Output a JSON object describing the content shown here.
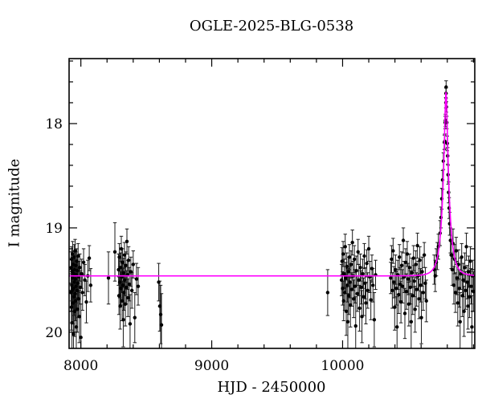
{
  "chart_data": {
    "type": "scatter",
    "title": "OGLE-2025-BLG-0538",
    "xlabel": "HJD - 2450000",
    "ylabel": "I magnitude",
    "xlim": [
      7910,
      11010
    ],
    "ylim_mag": [
      20.155,
      17.377
    ],
    "y_axis_inverted": true,
    "grid": false,
    "legend": "none",
    "x_major_ticks": [
      8000,
      9000,
      10000
    ],
    "x_minor_step": 200,
    "y_major_ticks": [
      18,
      19,
      20
    ],
    "y_minor_step": 0.2,
    "colors": {
      "background": "#ffffff",
      "points": "#000000",
      "error_bars": "#1a1a1a",
      "model_curve": "#ff00ff",
      "axes": "#000000"
    },
    "model": {
      "kind": "paczynski-microlensing-fit",
      "baseline_mag": 19.46,
      "t0": 10790,
      "tE": 50,
      "u0": 0.2,
      "peak_mag": 17.7
    },
    "points": [
      [
        7925,
        19.62,
        0.18
      ],
      [
        7926,
        19.38,
        0.15
      ],
      [
        7928,
        19.76,
        0.22
      ],
      [
        7929,
        19.3,
        0.12
      ],
      [
        7931,
        19.55,
        0.15
      ],
      [
        7932,
        19.91,
        0.28
      ],
      [
        7934,
        19.42,
        0.14
      ],
      [
        7935,
        19.6,
        0.16
      ],
      [
        7937,
        19.25,
        0.12
      ],
      [
        7938,
        19.48,
        0.15
      ],
      [
        7940,
        19.72,
        0.2
      ],
      [
        7941,
        19.35,
        0.13
      ],
      [
        7943,
        19.58,
        0.16
      ],
      [
        7944,
        20.02,
        0.3
      ],
      [
        7946,
        19.44,
        0.14
      ],
      [
        7947,
        19.66,
        0.18
      ],
      [
        7949,
        19.28,
        0.12
      ],
      [
        7950,
        19.52,
        0.15
      ],
      [
        7952,
        19.8,
        0.24
      ],
      [
        7953,
        19.4,
        0.13
      ],
      [
        7955,
        19.63,
        0.17
      ],
      [
        7956,
        19.22,
        0.11
      ],
      [
        7958,
        19.49,
        0.15
      ],
      [
        7959,
        19.7,
        0.19
      ],
      [
        7961,
        19.36,
        0.13
      ],
      [
        7963,
        19.56,
        0.16
      ],
      [
        7965,
        19.95,
        0.28
      ],
      [
        7967,
        19.45,
        0.14
      ],
      [
        7969,
        19.32,
        0.12
      ],
      [
        7971,
        19.6,
        0.17
      ],
      [
        7973,
        19.78,
        0.22
      ],
      [
        7975,
        19.41,
        0.14
      ],
      [
        7977,
        19.53,
        0.15
      ],
      [
        7979,
        19.27,
        0.12
      ],
      [
        7982,
        19.68,
        0.18
      ],
      [
        7985,
        19.47,
        0.15
      ],
      [
        7988,
        19.85,
        0.25
      ],
      [
        7992,
        19.38,
        0.13
      ],
      [
        7996,
        19.57,
        0.16
      ],
      [
        8000,
        20.05,
        0.32
      ],
      [
        8006,
        19.44,
        0.14
      ],
      [
        8013,
        19.62,
        0.17
      ],
      [
        8021,
        19.33,
        0.13
      ],
      [
        8031,
        19.5,
        0.15
      ],
      [
        8042,
        19.71,
        0.2
      ],
      [
        8053,
        19.46,
        0.15
      ],
      [
        8064,
        19.29,
        0.12
      ],
      [
        8075,
        19.55,
        0.16
      ],
      [
        8211,
        19.48,
        0.25
      ],
      [
        8260,
        19.23,
        0.28
      ],
      [
        8288,
        19.4,
        0.15
      ],
      [
        8291,
        19.65,
        0.18
      ],
      [
        8294,
        19.28,
        0.13
      ],
      [
        8297,
        19.52,
        0.15
      ],
      [
        8300,
        19.75,
        0.22
      ],
      [
        8303,
        19.38,
        0.14
      ],
      [
        8306,
        19.58,
        0.16
      ],
      [
        8309,
        19.2,
        0.12
      ],
      [
        8312,
        19.47,
        0.15
      ],
      [
        8315,
        19.7,
        0.19
      ],
      [
        8318,
        19.33,
        0.13
      ],
      [
        8321,
        19.55,
        0.16
      ],
      [
        8324,
        19.88,
        0.26
      ],
      [
        8327,
        19.43,
        0.14
      ],
      [
        8330,
        19.62,
        0.17
      ],
      [
        8333,
        19.26,
        0.12
      ],
      [
        8336,
        19.5,
        0.15
      ],
      [
        8340,
        19.73,
        0.21
      ],
      [
        8344,
        19.36,
        0.13
      ],
      [
        8348,
        19.57,
        0.16
      ],
      [
        8352,
        19.13,
        0.12
      ],
      [
        8356,
        19.45,
        0.14
      ],
      [
        8360,
        19.67,
        0.18
      ],
      [
        8365,
        19.31,
        0.13
      ],
      [
        8370,
        19.54,
        0.16
      ],
      [
        8376,
        19.92,
        0.28
      ],
      [
        8382,
        19.42,
        0.14
      ],
      [
        8390,
        19.6,
        0.17
      ],
      [
        8400,
        19.35,
        0.13
      ],
      [
        8412,
        19.86,
        0.24
      ],
      [
        8425,
        19.49,
        0.15
      ],
      [
        8438,
        19.56,
        0.18
      ],
      [
        8595,
        19.52,
        0.18
      ],
      [
        8603,
        19.75,
        0.24
      ],
      [
        8610,
        19.83,
        0.28
      ],
      [
        8616,
        19.93,
        0.3
      ],
      [
        9886,
        19.62,
        0.22
      ],
      [
        9992,
        19.5,
        0.15
      ],
      [
        9996,
        19.32,
        0.13
      ],
      [
        10000,
        19.58,
        0.16
      ],
      [
        10004,
        19.25,
        0.12
      ],
      [
        10008,
        19.7,
        0.19
      ],
      [
        10012,
        19.44,
        0.14
      ],
      [
        10016,
        19.62,
        0.17
      ],
      [
        10020,
        19.18,
        0.12
      ],
      [
        10024,
        19.48,
        0.15
      ],
      [
        10028,
        19.8,
        0.23
      ],
      [
        10032,
        19.37,
        0.13
      ],
      [
        10036,
        19.55,
        0.16
      ],
      [
        10040,
        19.9,
        0.27
      ],
      [
        10044,
        19.42,
        0.14
      ],
      [
        10048,
        19.65,
        0.18
      ],
      [
        10052,
        19.28,
        0.12
      ],
      [
        10056,
        19.52,
        0.15
      ],
      [
        10060,
        19.74,
        0.21
      ],
      [
        10065,
        19.35,
        0.13
      ],
      [
        10070,
        19.59,
        0.16
      ],
      [
        10075,
        19.14,
        0.12
      ],
      [
        10080,
        19.46,
        0.14
      ],
      [
        10085,
        19.68,
        0.18
      ],
      [
        10090,
        19.3,
        0.13
      ],
      [
        10095,
        19.56,
        0.16
      ],
      [
        10100,
        19.94,
        0.28
      ],
      [
        10106,
        19.41,
        0.14
      ],
      [
        10112,
        19.63,
        0.17
      ],
      [
        10118,
        19.23,
        0.12
      ],
      [
        10124,
        19.5,
        0.15
      ],
      [
        10130,
        19.77,
        0.22
      ],
      [
        10136,
        19.38,
        0.13
      ],
      [
        10142,
        19.57,
        0.16
      ],
      [
        10148,
        19.85,
        0.25
      ],
      [
        10154,
        19.44,
        0.14
      ],
      [
        10160,
        19.66,
        0.18
      ],
      [
        10166,
        19.27,
        0.12
      ],
      [
        10172,
        19.53,
        0.15
      ],
      [
        10178,
        19.72,
        0.2
      ],
      [
        10185,
        19.34,
        0.13
      ],
      [
        10192,
        19.6,
        0.17
      ],
      [
        10200,
        19.2,
        0.12
      ],
      [
        10208,
        19.47,
        0.15
      ],
      [
        10216,
        19.69,
        0.19
      ],
      [
        10224,
        19.39,
        0.13
      ],
      [
        10232,
        19.55,
        0.16
      ],
      [
        10242,
        19.88,
        0.26
      ],
      [
        10252,
        19.45,
        0.14
      ],
      [
        10368,
        19.48,
        0.15
      ],
      [
        10374,
        19.3,
        0.13
      ],
      [
        10380,
        19.6,
        0.17
      ],
      [
        10386,
        19.22,
        0.12
      ],
      [
        10392,
        19.52,
        0.15
      ],
      [
        10398,
        19.76,
        0.22
      ],
      [
        10404,
        19.4,
        0.14
      ],
      [
        10410,
        19.58,
        0.16
      ],
      [
        10416,
        19.95,
        0.29
      ],
      [
        10422,
        19.45,
        0.14
      ],
      [
        10428,
        19.64,
        0.18
      ],
      [
        10434,
        19.28,
        0.12
      ],
      [
        10440,
        19.54,
        0.16
      ],
      [
        10446,
        19.71,
        0.2
      ],
      [
        10452,
        19.36,
        0.13
      ],
      [
        10458,
        19.56,
        0.16
      ],
      [
        10464,
        19.12,
        0.12
      ],
      [
        10470,
        19.47,
        0.15
      ],
      [
        10476,
        19.82,
        0.24
      ],
      [
        10482,
        19.33,
        0.13
      ],
      [
        10488,
        19.61,
        0.17
      ],
      [
        10494,
        19.25,
        0.12
      ],
      [
        10500,
        19.49,
        0.15
      ],
      [
        10506,
        19.73,
        0.21
      ],
      [
        10512,
        19.38,
        0.13
      ],
      [
        10518,
        19.57,
        0.16
      ],
      [
        10524,
        19.9,
        0.27
      ],
      [
        10530,
        19.43,
        0.14
      ],
      [
        10536,
        19.65,
        0.18
      ],
      [
        10542,
        19.29,
        0.12
      ],
      [
        10548,
        19.51,
        0.15
      ],
      [
        10554,
        19.78,
        0.22
      ],
      [
        10560,
        19.35,
        0.13
      ],
      [
        10566,
        19.59,
        0.16
      ],
      [
        10572,
        19.17,
        0.12
      ],
      [
        10578,
        19.46,
        0.14
      ],
      [
        10584,
        19.68,
        0.19
      ],
      [
        10590,
        19.31,
        0.13
      ],
      [
        10596,
        19.55,
        0.16
      ],
      [
        10602,
        19.86,
        0.25
      ],
      [
        10608,
        19.42,
        0.14
      ],
      [
        10616,
        19.62,
        0.17
      ],
      [
        10624,
        19.26,
        0.12
      ],
      [
        10632,
        19.53,
        0.15
      ],
      [
        10640,
        19.7,
        0.2
      ],
      [
        10700,
        19.4,
        0.14
      ],
      [
        10708,
        19.46,
        0.15
      ],
      [
        10716,
        19.33,
        0.13
      ],
      [
        10724,
        19.27,
        0.13
      ],
      [
        10732,
        19.18,
        0.12
      ],
      [
        10745,
        19.05,
        0.12
      ],
      [
        10752,
        18.9,
        0.1
      ],
      [
        10758,
        18.72,
        0.1
      ],
      [
        10764,
        18.54,
        0.09
      ],
      [
        10770,
        18.36,
        0.08
      ],
      [
        10778,
        18.18,
        0.07
      ],
      [
        10781,
        18.17,
        0.07
      ],
      [
        10784,
        17.99,
        0.06
      ],
      [
        10786,
        17.97,
        0.06
      ],
      [
        10789,
        17.8,
        0.05
      ],
      [
        10790,
        17.71,
        0.05
      ],
      [
        10791,
        17.65,
        0.06
      ],
      [
        10793,
        17.84,
        0.05
      ],
      [
        10796,
        17.99,
        0.06
      ],
      [
        10800,
        18.19,
        0.07
      ],
      [
        10803,
        18.31,
        0.08
      ],
      [
        10806,
        18.49,
        0.09
      ],
      [
        10810,
        18.66,
        0.1
      ],
      [
        10814,
        18.81,
        0.1
      ],
      [
        10818,
        18.96,
        0.11
      ],
      [
        10824,
        19.12,
        0.12
      ],
      [
        10830,
        19.26,
        0.13
      ],
      [
        10838,
        19.4,
        0.15
      ],
      [
        10844,
        19.15,
        0.14
      ],
      [
        10850,
        19.55,
        0.18
      ],
      [
        10856,
        19.3,
        0.14
      ],
      [
        10862,
        19.62,
        0.19
      ],
      [
        10868,
        19.22,
        0.13
      ],
      [
        10874,
        19.48,
        0.16
      ],
      [
        10880,
        19.72,
        0.22
      ],
      [
        10886,
        19.35,
        0.14
      ],
      [
        10892,
        19.58,
        0.18
      ],
      [
        10898,
        19.9,
        0.28
      ],
      [
        10904,
        19.44,
        0.15
      ],
      [
        10910,
        19.28,
        0.13
      ],
      [
        10916,
        19.65,
        0.2
      ],
      [
        10922,
        19.5,
        0.16
      ],
      [
        10928,
        19.8,
        0.24
      ],
      [
        10934,
        19.38,
        0.14
      ],
      [
        10940,
        19.6,
        0.18
      ],
      [
        10946,
        19.18,
        0.13
      ],
      [
        10952,
        19.52,
        0.16
      ],
      [
        10958,
        19.75,
        0.22
      ],
      [
        10964,
        19.42,
        0.15
      ],
      [
        10970,
        19.66,
        0.2
      ],
      [
        10976,
        19.32,
        0.14
      ],
      [
        10982,
        19.56,
        0.17
      ],
      [
        10988,
        19.95,
        0.3
      ],
      [
        10994,
        19.46,
        0.15
      ],
      [
        11000,
        19.61,
        0.19
      ]
    ]
  }
}
